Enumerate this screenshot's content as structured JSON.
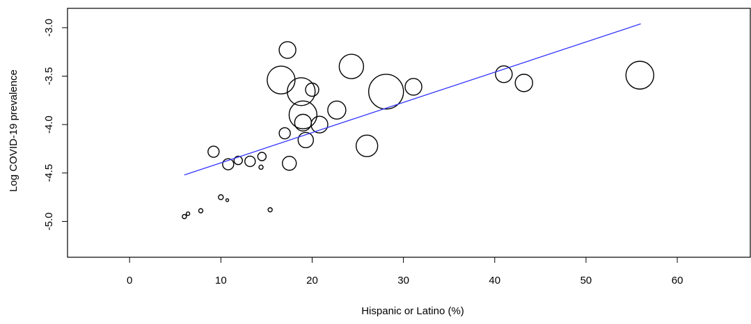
{
  "chart_data": {
    "type": "scatter",
    "title": "",
    "xlabel": "Hispanic or Latino (%)",
    "ylabel": "Log COVID-19 prevalence",
    "xlim": [
      -6.8,
      68
    ],
    "ylim": [
      -5.37,
      -2.8
    ],
    "x_ticks": [
      0,
      10,
      20,
      30,
      40,
      50,
      60
    ],
    "x_tick_labels": [
      "0",
      "10",
      "20",
      "30",
      "40",
      "50",
      "60"
    ],
    "y_ticks": [
      -5.0,
      -4.5,
      -4.0,
      -3.5,
      -3.0
    ],
    "y_tick_labels": [
      "-5.0",
      "-4.5",
      "-4.0",
      "-3.5",
      "-3.0"
    ],
    "grid": false,
    "legend": "none",
    "marker": "open circle, size proportional to weight",
    "point_color": "#000000",
    "fit_line": {
      "color": "#3333ff",
      "x": [
        6.0,
        56.0
      ],
      "y": [
        -4.52,
        -2.96
      ]
    },
    "points": [
      {
        "x": 6.0,
        "y": -4.95,
        "size": 3
      },
      {
        "x": 6.4,
        "y": -4.92,
        "size": 2.5
      },
      {
        "x": 7.8,
        "y": -4.89,
        "size": 3
      },
      {
        "x": 10.0,
        "y": -4.75,
        "size": 3.5
      },
      {
        "x": 10.7,
        "y": -4.78,
        "size": 2
      },
      {
        "x": 15.4,
        "y": -4.88,
        "size": 3
      },
      {
        "x": 14.4,
        "y": -4.44,
        "size": 3
      },
      {
        "x": 9.2,
        "y": -4.28,
        "size": 8
      },
      {
        "x": 10.8,
        "y": -4.41,
        "size": 8
      },
      {
        "x": 11.9,
        "y": -4.37,
        "size": 6
      },
      {
        "x": 13.2,
        "y": -4.38,
        "size": 7.5
      },
      {
        "x": 14.5,
        "y": -4.33,
        "size": 6
      },
      {
        "x": 17.0,
        "y": -4.09,
        "size": 8
      },
      {
        "x": 17.5,
        "y": -4.4,
        "size": 10
      },
      {
        "x": 17.3,
        "y": -3.23,
        "size": 12
      },
      {
        "x": 16.6,
        "y": -3.54,
        "size": 20
      },
      {
        "x": 19.0,
        "y": -3.9,
        "size": 20
      },
      {
        "x": 18.8,
        "y": -3.66,
        "size": 20
      },
      {
        "x": 20.0,
        "y": -3.64,
        "size": 9.5
      },
      {
        "x": 19.0,
        "y": -3.98,
        "size": 12
      },
      {
        "x": 19.3,
        "y": -4.16,
        "size": 11
      },
      {
        "x": 20.8,
        "y": -4.0,
        "size": 12
      },
      {
        "x": 22.7,
        "y": -3.85,
        "size": 13
      },
      {
        "x": 24.3,
        "y": -3.4,
        "size": 17.5
      },
      {
        "x": 26.0,
        "y": -4.22,
        "size": 15.5
      },
      {
        "x": 28.1,
        "y": -3.66,
        "size": 25
      },
      {
        "x": 31.1,
        "y": -3.61,
        "size": 12
      },
      {
        "x": 41.0,
        "y": -3.48,
        "size": 12
      },
      {
        "x": 43.2,
        "y": -3.57,
        "size": 12.5
      },
      {
        "x": 55.9,
        "y": -3.49,
        "size": 20
      }
    ]
  }
}
